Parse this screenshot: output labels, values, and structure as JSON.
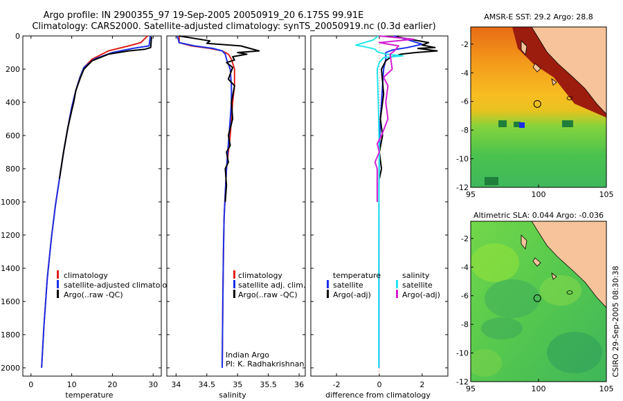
{
  "title_line1": "Argo profile: IN 2900355_97 19-Sep-2005 20050919_20 6.175S 99.91E",
  "title_line2": "Climatology: CARS2000. Satellite-adjusted climatology: synTS_20050919.nc (0.3d earlier)",
  "footer": "CSIRO 29-Sep-2005 08:30:38",
  "colors": {
    "red": "#e0201b",
    "blue": "#1a2ee6",
    "black": "#000000",
    "cyan": "#22e6ee",
    "magenta": "#d21fd2",
    "land": "#f6c39a"
  },
  "chart_data": [
    {
      "type": "line",
      "xlabel": "temperature",
      "xlim": [
        -2,
        32
      ],
      "ylim": [
        2050,
        0
      ],
      "xticks": [
        0,
        10,
        20,
        30
      ],
      "yticks": [
        0,
        200,
        400,
        600,
        800,
        1000,
        1200,
        1400,
        1600,
        1800,
        2000
      ],
      "legend": [
        "climatology",
        "satellite-adjusted climatology",
        "Argo(..raw -QC)"
      ],
      "series": [
        {
          "name": "climatology",
          "color": "red",
          "x": [
            28.6,
            27,
            24,
            19,
            15,
            13,
            12,
            11,
            10,
            9,
            8,
            7,
            6,
            5,
            4,
            3.2,
            2.6
          ],
          "y": [
            0,
            40,
            60,
            90,
            140,
            190,
            250,
            330,
            430,
            560,
            700,
            860,
            1020,
            1220,
            1460,
            1740,
            2000
          ]
        },
        {
          "name": "satellite-adjusted climatology",
          "color": "blue",
          "x": [
            29.3,
            29,
            25,
            20,
            15.5,
            13,
            12,
            11,
            10,
            9,
            8,
            7,
            6,
            5,
            4,
            3.2,
            2.6
          ],
          "y": [
            0,
            60,
            75,
            100,
            140,
            190,
            250,
            330,
            430,
            560,
            700,
            860,
            1020,
            1220,
            1460,
            1740,
            2000
          ]
        },
        {
          "name": "Argo(..raw -QC)",
          "color": "black",
          "x": [
            29.6,
            29.5,
            29.4,
            28,
            24,
            19,
            15,
            13,
            12,
            11,
            10.5,
            10,
            9,
            8,
            7
          ],
          "y": [
            5,
            40,
            70,
            80,
            90,
            110,
            150,
            200,
            260,
            330,
            400,
            450,
            560,
            700,
            860
          ]
        }
      ]
    },
    {
      "type": "line",
      "xlabel": "salinity",
      "xlim": [
        33.85,
        36.1
      ],
      "ylim": [
        2050,
        0
      ],
      "xticks": [
        34,
        34.5,
        35,
        35.5,
        36
      ],
      "legend": [
        "climatology",
        "satellite adj. clim.",
        "Argo(..raw -QC)"
      ],
      "annotation": [
        "Indian Argo",
        "PI: K. Radhakrishnan"
      ],
      "series": [
        {
          "name": "climatology",
          "color": "red",
          "x": [
            34.05,
            34.05,
            34.25,
            34.55,
            34.75,
            34.85,
            34.9,
            34.95,
            34.95,
            34.92,
            34.9,
            34.88,
            34.85,
            34.82,
            34.8,
            34.78,
            34.77,
            34.76,
            34.75
          ],
          "y": [
            0,
            40,
            60,
            75,
            90,
            110,
            140,
            200,
            300,
            400,
            500,
            600,
            700,
            800,
            950,
            1100,
            1300,
            1600,
            2000
          ]
        },
        {
          "name": "satellite adj. clim.",
          "color": "blue",
          "x": [
            34.02,
            34.05,
            34.3,
            34.6,
            34.75,
            34.8,
            34.82,
            34.88,
            34.9,
            34.9,
            34.88,
            34.86,
            34.84,
            34.82,
            34.8,
            34.78,
            34.77,
            34.76,
            34.75
          ],
          "y": [
            0,
            40,
            60,
            75,
            90,
            110,
            140,
            200,
            300,
            400,
            500,
            600,
            700,
            800,
            950,
            1100,
            1300,
            1600,
            2000
          ]
        },
        {
          "name": "Argo(..raw -QC)",
          "color": "black",
          "x": [
            34.05,
            34.55,
            34.5,
            35.05,
            35.35,
            35.0,
            35.15,
            34.92,
            34.95,
            34.82,
            34.92,
            34.85,
            34.95,
            34.9,
            34.92,
            34.85,
            34.88,
            34.82,
            34.85,
            34.8,
            34.82,
            34.8
          ],
          "y": [
            0,
            30,
            45,
            60,
            90,
            100,
            110,
            125,
            145,
            160,
            190,
            260,
            300,
            400,
            500,
            600,
            660,
            700,
            760,
            800,
            900,
            1000
          ]
        }
      ]
    },
    {
      "type": "line",
      "xlabel": "difference from climatology",
      "xlim": [
        -3.2,
        3.2
      ],
      "ylim": [
        2050,
        0
      ],
      "xticks": [
        -2,
        0,
        2
      ],
      "legend": [
        [
          "temperature",
          "salinity"
        ],
        [
          "satellite",
          "satellite"
        ],
        [
          "Argo(-adj)",
          "Argo(-adj)"
        ]
      ],
      "series": [
        {
          "name": "temperature satellite",
          "color": "blue",
          "x": [
            0.7,
            1.5,
            2.0,
            1.3,
            0.6,
            0.3,
            0.3,
            0.2,
            0.15,
            0.1,
            0.05,
            0.0,
            -0.02,
            -0.02,
            -0.02,
            -0.02
          ],
          "y": [
            0,
            30,
            50,
            70,
            85,
            100,
            140,
            200,
            300,
            400,
            500,
            700,
            900,
            1200,
            1600,
            2000
          ]
        },
        {
          "name": "temperature Argo(-adj)",
          "color": "black",
          "x": [
            0.8,
            2.3,
            2.0,
            2.6,
            1.8,
            2.7,
            1.7,
            1.0,
            0.5,
            0.3,
            0.1,
            0.2,
            0.05,
            0.15,
            0.0,
            0.1,
            0.0
          ],
          "y": [
            5,
            40,
            55,
            70,
            75,
            90,
            100,
            110,
            130,
            150,
            200,
            350,
            500,
            600,
            700,
            800,
            860
          ]
        },
        {
          "name": "salinity satellite",
          "color": "cyan",
          "x": [
            -0.05,
            -0.3,
            -1.1,
            -0.5,
            -0.2,
            -0.1,
            0.3,
            1.1,
            0.2,
            0.0,
            -0.1,
            -0.05,
            0.0,
            -0.02,
            -0.03,
            -0.03
          ],
          "y": [
            0,
            25,
            55,
            70,
            80,
            95,
            110,
            120,
            130,
            160,
            200,
            400,
            700,
            1000,
            1500,
            2000
          ]
        },
        {
          "name": "salinity Argo(-adj)",
          "color": "magenta",
          "x": [
            0.0,
            1.6,
            0.0,
            0.9,
            0.7,
            0.5,
            0.6,
            0.2,
            0.4,
            0.3,
            0.4,
            0.1,
            -0.1,
            0.0,
            -0.2,
            -0.1,
            -0.1
          ],
          "y": [
            0,
            20,
            40,
            60,
            90,
            110,
            200,
            250,
            300,
            400,
            500,
            600,
            650,
            700,
            760,
            800,
            1000
          ]
        }
      ]
    },
    {
      "type": "heatmap",
      "title": "AMSR-E SST: 29.2 Argo: 28.8",
      "xlim": [
        95,
        105
      ],
      "ylim": [
        -12,
        -0.8
      ],
      "xticks": [
        95,
        100,
        105
      ],
      "yticks": [
        -2,
        -4,
        -6,
        -8,
        -10,
        -12
      ],
      "argo_position": [
        99.91,
        -6.175
      ]
    },
    {
      "type": "heatmap",
      "title": "Altimetric SLA: 0.044 Argo: -0.036",
      "xlim": [
        95,
        105
      ],
      "ylim": [
        -12,
        -0.8
      ],
      "xticks": [
        95,
        100,
        105
      ],
      "yticks": [
        -2,
        -4,
        -6,
        -8,
        -10,
        -12
      ],
      "argo_position": [
        99.91,
        -6.175
      ]
    }
  ]
}
